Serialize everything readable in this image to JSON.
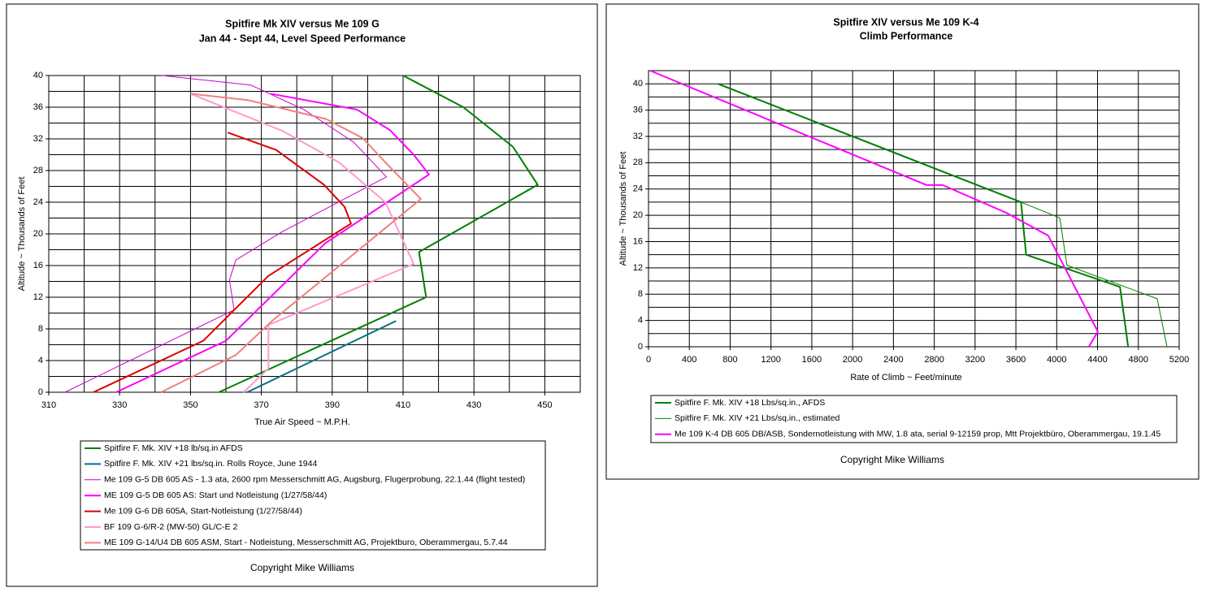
{
  "chart_data": [
    {
      "type": "line",
      "title": "Spitfire Mk XIV versus Me 109 G",
      "subtitle": "Jan 44 - Sept 44, Level Speed Performance",
      "xlabel": "True Air Speed ~ M.P.H.",
      "ylabel": "Altitude ~ Thousands of Feet",
      "copyright": "Copyright Mike Williams",
      "xlim": [
        310,
        460
      ],
      "ylim": [
        0,
        40
      ],
      "xticks": [
        310,
        330,
        350,
        370,
        390,
        410,
        430,
        450
      ],
      "x_minor_ticks": [
        320,
        340,
        360,
        380,
        400,
        420,
        440,
        460
      ],
      "yticks": [
        0,
        4,
        8,
        12,
        16,
        20,
        24,
        28,
        32,
        36,
        40
      ],
      "y_minor_ticks": [
        2,
        6,
        10,
        14,
        18,
        22,
        26,
        30,
        34,
        38
      ],
      "grid": true,
      "series": [
        {
          "name": "Spitfire F. Mk. XIV +18 lb/sq.in AFDS",
          "color": "#008000",
          "width": 2,
          "x": [
            358,
            416.5,
            414.5,
            448,
            441,
            427,
            410
          ],
          "values": [
            0,
            12,
            17.7,
            26.2,
            31,
            36,
            40
          ]
        },
        {
          "name": "Spitfire F. Mk. XIV +21 lbs/sq.in. Rolls Royce, June 1944",
          "color": "#007080",
          "width": 2,
          "x": [
            366,
            408
          ],
          "values": [
            0,
            9
          ]
        },
        {
          "name": "Me 109 G-5  DB 605 AS - 1.3 ata, 2600 rpm Messerschmitt AG, Augsburg, Flugerprobung, 22.1.44 (flight tested)",
          "color": "#cc00cc",
          "width": 1,
          "x": [
            314.6,
            362.3,
            361,
            362.8,
            376,
            405.3,
            396,
            382,
            367,
            342
          ],
          "values": [
            0,
            10.4,
            14.2,
            16.7,
            20.3,
            27.2,
            31.6,
            35.7,
            38.8,
            40
          ]
        },
        {
          "name": "ME 109 G-5  DB 605 AS: Start und Notleistung (1/27/58/44)",
          "color": "#ff00ff",
          "width": 2,
          "x": [
            329,
            360,
            388,
            417.3,
            413,
            406.3,
            397,
            372.6
          ],
          "values": [
            0,
            6.5,
            18.8,
            27.5,
            30,
            33.1,
            35.7,
            37.7
          ]
        },
        {
          "name": "Me 109 G-6  DB 605A, Start-Notleistung (1/27/58/44)",
          "color": "#dd0000",
          "width": 2,
          "x": [
            322.6,
            353.6,
            372,
            395.3,
            393.5,
            387.7,
            374.2,
            360.5
          ],
          "values": [
            0,
            6.5,
            14.7,
            21.3,
            23.4,
            26.2,
            30.6,
            32.8
          ]
        },
        {
          "name": "BF 109 G-6/R-2 (MW-50) GL/C-E 2",
          "color": "#ff99cc",
          "width": 2,
          "x": [
            365,
            372,
            372,
            413,
            405,
            392,
            376,
            350
          ],
          "values": [
            0,
            3,
            8.5,
            16.2,
            24,
            29,
            33,
            37.7
          ]
        },
        {
          "name": "ME 109 G-14/U4 DB 605 ASM, Start - Notleistung, Messerschmitt AG, Projektburo, Oberammergau, 5.7.44",
          "color": "#f08080",
          "width": 2,
          "x": [
            341.7,
            362.8,
            373,
            415,
            404,
            403,
            398.6,
            388.3,
            366.2,
            350
          ],
          "values": [
            0,
            4.7,
            9,
            24.4,
            29.5,
            30,
            32.1,
            34.5,
            36.9,
            37.7
          ]
        }
      ]
    },
    {
      "type": "line",
      "title": "Spitfire XIV versus Me 109 K-4",
      "subtitle": "Climb Performance",
      "xlabel": "Rate of Climb ~ Feet/minute",
      "ylabel": "Altitude ~ Thousands of Feet",
      "copyright": "Copyright Mike Williams",
      "xlim": [
        0,
        5200
      ],
      "ylim": [
        0,
        42
      ],
      "xticks": [
        0,
        400,
        800,
        1200,
        1600,
        2000,
        2400,
        2800,
        3200,
        3600,
        4000,
        4400,
        4800,
        5200
      ],
      "x_minor_ticks": [],
      "yticks": [
        0,
        4,
        8,
        12,
        16,
        20,
        24,
        28,
        32,
        36,
        40
      ],
      "y_minor_ticks": [
        2,
        6,
        10,
        14,
        18,
        22,
        26,
        30,
        34,
        38
      ],
      "grid": true,
      "series": [
        {
          "name": "Spitfire F. Mk. XIV +18 Lbs/sq.in.,  AFDS",
          "color": "#008000",
          "width": 2,
          "x": [
            4700,
            4620,
            3700,
            3650,
            680
          ],
          "values": [
            0,
            9.1,
            14,
            22,
            40
          ]
        },
        {
          "name": "Spitfire F. Mk. XIV +21 Lbs/sq.in.,  estimated",
          "color": "#008000",
          "width": 1,
          "x": [
            5080,
            4985,
            4100,
            4030,
            3650,
            680
          ],
          "values": [
            0,
            7.3,
            12.4,
            19.6,
            22,
            40
          ]
        },
        {
          "name": "Me 109 K-4  DB 605 DB/ASB, Sondernotleistung with MW, 1.8 ata, serial 9-12159 prop, Mtt Projektbüro, Oberammergau, 19.1.45",
          "color": "#ff00ff",
          "width": 2,
          "x": [
            4315,
            4403,
            3917,
            3503,
            2882,
            2723,
            16
          ],
          "values": [
            0,
            2.3,
            16.9,
            20.4,
            24.6,
            24.6,
            42
          ]
        }
      ]
    }
  ]
}
